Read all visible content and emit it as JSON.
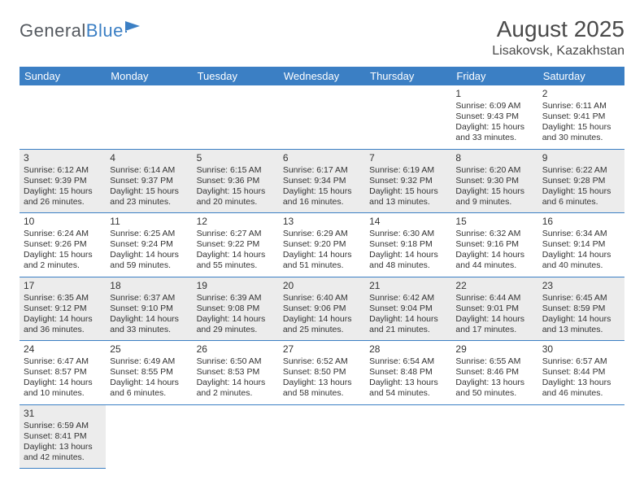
{
  "logo": {
    "textGray": "General",
    "textBlue": "Blue"
  },
  "title": "August 2025",
  "location": "Lisakovsk, Kazakhstan",
  "colors": {
    "header_bg": "#3b7fc4",
    "header_fg": "#ffffff",
    "shade_bg": "#ececec",
    "border": "#3b7fc4",
    "text": "#333333",
    "title_color": "#4a4a4a"
  },
  "typography": {
    "title_fontsize": 28,
    "location_fontsize": 16,
    "dayheader_fontsize": 13,
    "cell_fontsize": 10.5,
    "daynum_fontsize": 12
  },
  "dayHeaders": [
    "Sunday",
    "Monday",
    "Tuesday",
    "Wednesday",
    "Thursday",
    "Friday",
    "Saturday"
  ],
  "weeks": [
    {
      "shaded": false,
      "days": [
        null,
        null,
        null,
        null,
        null,
        {
          "num": "1",
          "sunrise": "Sunrise: 6:09 AM",
          "sunset": "Sunset: 9:43 PM",
          "daylight": "Daylight: 15 hours and 33 minutes."
        },
        {
          "num": "2",
          "sunrise": "Sunrise: 6:11 AM",
          "sunset": "Sunset: 9:41 PM",
          "daylight": "Daylight: 15 hours and 30 minutes."
        }
      ]
    },
    {
      "shaded": true,
      "days": [
        {
          "num": "3",
          "sunrise": "Sunrise: 6:12 AM",
          "sunset": "Sunset: 9:39 PM",
          "daylight": "Daylight: 15 hours and 26 minutes."
        },
        {
          "num": "4",
          "sunrise": "Sunrise: 6:14 AM",
          "sunset": "Sunset: 9:37 PM",
          "daylight": "Daylight: 15 hours and 23 minutes."
        },
        {
          "num": "5",
          "sunrise": "Sunrise: 6:15 AM",
          "sunset": "Sunset: 9:36 PM",
          "daylight": "Daylight: 15 hours and 20 minutes."
        },
        {
          "num": "6",
          "sunrise": "Sunrise: 6:17 AM",
          "sunset": "Sunset: 9:34 PM",
          "daylight": "Daylight: 15 hours and 16 minutes."
        },
        {
          "num": "7",
          "sunrise": "Sunrise: 6:19 AM",
          "sunset": "Sunset: 9:32 PM",
          "daylight": "Daylight: 15 hours and 13 minutes."
        },
        {
          "num": "8",
          "sunrise": "Sunrise: 6:20 AM",
          "sunset": "Sunset: 9:30 PM",
          "daylight": "Daylight: 15 hours and 9 minutes."
        },
        {
          "num": "9",
          "sunrise": "Sunrise: 6:22 AM",
          "sunset": "Sunset: 9:28 PM",
          "daylight": "Daylight: 15 hours and 6 minutes."
        }
      ]
    },
    {
      "shaded": false,
      "days": [
        {
          "num": "10",
          "sunrise": "Sunrise: 6:24 AM",
          "sunset": "Sunset: 9:26 PM",
          "daylight": "Daylight: 15 hours and 2 minutes."
        },
        {
          "num": "11",
          "sunrise": "Sunrise: 6:25 AM",
          "sunset": "Sunset: 9:24 PM",
          "daylight": "Daylight: 14 hours and 59 minutes."
        },
        {
          "num": "12",
          "sunrise": "Sunrise: 6:27 AM",
          "sunset": "Sunset: 9:22 PM",
          "daylight": "Daylight: 14 hours and 55 minutes."
        },
        {
          "num": "13",
          "sunrise": "Sunrise: 6:29 AM",
          "sunset": "Sunset: 9:20 PM",
          "daylight": "Daylight: 14 hours and 51 minutes."
        },
        {
          "num": "14",
          "sunrise": "Sunrise: 6:30 AM",
          "sunset": "Sunset: 9:18 PM",
          "daylight": "Daylight: 14 hours and 48 minutes."
        },
        {
          "num": "15",
          "sunrise": "Sunrise: 6:32 AM",
          "sunset": "Sunset: 9:16 PM",
          "daylight": "Daylight: 14 hours and 44 minutes."
        },
        {
          "num": "16",
          "sunrise": "Sunrise: 6:34 AM",
          "sunset": "Sunset: 9:14 PM",
          "daylight": "Daylight: 14 hours and 40 minutes."
        }
      ]
    },
    {
      "shaded": true,
      "days": [
        {
          "num": "17",
          "sunrise": "Sunrise: 6:35 AM",
          "sunset": "Sunset: 9:12 PM",
          "daylight": "Daylight: 14 hours and 36 minutes."
        },
        {
          "num": "18",
          "sunrise": "Sunrise: 6:37 AM",
          "sunset": "Sunset: 9:10 PM",
          "daylight": "Daylight: 14 hours and 33 minutes."
        },
        {
          "num": "19",
          "sunrise": "Sunrise: 6:39 AM",
          "sunset": "Sunset: 9:08 PM",
          "daylight": "Daylight: 14 hours and 29 minutes."
        },
        {
          "num": "20",
          "sunrise": "Sunrise: 6:40 AM",
          "sunset": "Sunset: 9:06 PM",
          "daylight": "Daylight: 14 hours and 25 minutes."
        },
        {
          "num": "21",
          "sunrise": "Sunrise: 6:42 AM",
          "sunset": "Sunset: 9:04 PM",
          "daylight": "Daylight: 14 hours and 21 minutes."
        },
        {
          "num": "22",
          "sunrise": "Sunrise: 6:44 AM",
          "sunset": "Sunset: 9:01 PM",
          "daylight": "Daylight: 14 hours and 17 minutes."
        },
        {
          "num": "23",
          "sunrise": "Sunrise: 6:45 AM",
          "sunset": "Sunset: 8:59 PM",
          "daylight": "Daylight: 14 hours and 13 minutes."
        }
      ]
    },
    {
      "shaded": false,
      "days": [
        {
          "num": "24",
          "sunrise": "Sunrise: 6:47 AM",
          "sunset": "Sunset: 8:57 PM",
          "daylight": "Daylight: 14 hours and 10 minutes."
        },
        {
          "num": "25",
          "sunrise": "Sunrise: 6:49 AM",
          "sunset": "Sunset: 8:55 PM",
          "daylight": "Daylight: 14 hours and 6 minutes."
        },
        {
          "num": "26",
          "sunrise": "Sunrise: 6:50 AM",
          "sunset": "Sunset: 8:53 PM",
          "daylight": "Daylight: 14 hours and 2 minutes."
        },
        {
          "num": "27",
          "sunrise": "Sunrise: 6:52 AM",
          "sunset": "Sunset: 8:50 PM",
          "daylight": "Daylight: 13 hours and 58 minutes."
        },
        {
          "num": "28",
          "sunrise": "Sunrise: 6:54 AM",
          "sunset": "Sunset: 8:48 PM",
          "daylight": "Daylight: 13 hours and 54 minutes."
        },
        {
          "num": "29",
          "sunrise": "Sunrise: 6:55 AM",
          "sunset": "Sunset: 8:46 PM",
          "daylight": "Daylight: 13 hours and 50 minutes."
        },
        {
          "num": "30",
          "sunrise": "Sunrise: 6:57 AM",
          "sunset": "Sunset: 8:44 PM",
          "daylight": "Daylight: 13 hours and 46 minutes."
        }
      ]
    },
    {
      "shaded": true,
      "lastRow": true,
      "days": [
        {
          "num": "31",
          "sunrise": "Sunrise: 6:59 AM",
          "sunset": "Sunset: 8:41 PM",
          "daylight": "Daylight: 13 hours and 42 minutes."
        },
        null,
        null,
        null,
        null,
        null,
        null
      ]
    }
  ]
}
